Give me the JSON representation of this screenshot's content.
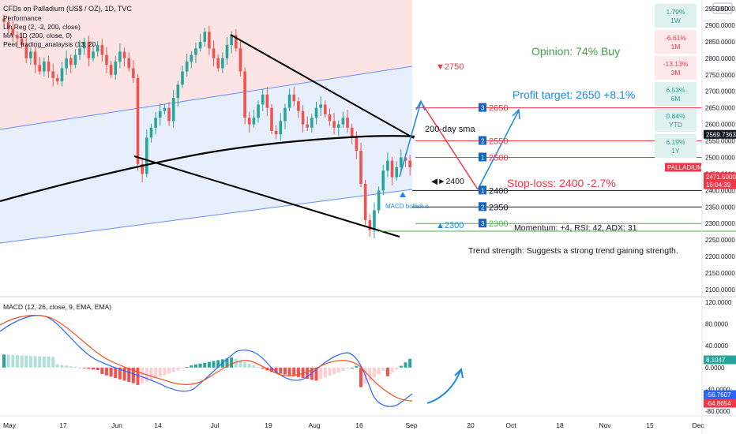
{
  "header": {
    "title": "CFDs on Palladium (US$ / OZ), 1D, TVC",
    "lines": [
      "Performance",
      "Lin Reg (2, -2, 200, close)",
      "MA - 1D (200, close, 0)",
      "Peet_trading_analaysis (13, 20"
    ]
  },
  "currency": "USD",
  "performance": [
    {
      "value": "1.79%",
      "period": "1W",
      "tone": "pos"
    },
    {
      "value": "-6.61%",
      "period": "1M",
      "tone": "neg"
    },
    {
      "value": "-13.13%",
      "period": "3M",
      "tone": "neg"
    },
    {
      "value": "6.53%",
      "period": "6M",
      "tone": "pos"
    },
    {
      "value": "0.84%",
      "period": "YTD",
      "tone": "pos"
    },
    {
      "value": "6.19%",
      "period": "1Y",
      "tone": "pos"
    }
  ],
  "annotations": {
    "opinion": "Opinion: 74% Buy",
    "profit_target": "Profit target: 2650 +8.1%",
    "stop_loss": "Stop-loss: 2400 -2.7%",
    "momentum": "Momentum: +4, RSI: 42, ADX: 31",
    "trend_strength": "Trend strength: Suggests a strong trend gaining strength.",
    "sma_label": "200-day sma",
    "macd_bullish": "MACD bullish x",
    "arrow_2750": "▼2750",
    "arrow_2300": "▲2300",
    "marker_2400": "◀►2400"
  },
  "levels": [
    {
      "num": "3",
      "value": 2650
    },
    {
      "num": "2",
      "value": 2550
    },
    {
      "num": "1",
      "value": 2500
    },
    {
      "num": "1",
      "value": 2400
    },
    {
      "num": "2",
      "value": 2350
    },
    {
      "num": "3",
      "value": 2300
    }
  ],
  "price_tags": [
    {
      "label": "2569.7363",
      "value": 2569.7363,
      "color": "#131722"
    },
    {
      "label": "PALLADIUM",
      "value": 2483,
      "color": "#f23645"
    },
    {
      "label": "2471.5000",
      "value": 2471.5,
      "color": "#f23645"
    },
    {
      "label": "16:04:39",
      "value": 2460,
      "color": "#f23645"
    }
  ],
  "macd": {
    "title": "MACD (12, 26, close, 9, EMA, EMA)",
    "ticks": [
      "120.0000",
      "80.0000",
      "40.0000",
      "0.0000",
      "-40.0000",
      "-80.0000"
    ],
    "tick_values": [
      120,
      80,
      40,
      0,
      -40,
      -80
    ],
    "tags": [
      {
        "label": "8.1047",
        "value": 8.1047,
        "color": "#26a69a"
      },
      {
        "label": "-56.7607",
        "value": -56.7607,
        "color": "#2962ff"
      },
      {
        "label": "-64.8654",
        "value": -64.8654,
        "color": "#f23645"
      }
    ]
  },
  "chart_data": {
    "type": "candlestick",
    "title": "CFDs on Palladium (US$ / OZ), 1D, TVC",
    "y_ticks": [
      2950,
      2900,
      2850,
      2800,
      2750,
      2700,
      2650,
      2600,
      2550,
      2500,
      2450,
      2400,
      2350,
      2300,
      2250,
      2200,
      2150,
      2100
    ],
    "ylim": [
      2080,
      2970
    ],
    "x_labels": [
      "May",
      "17",
      "Jun",
      "14",
      "Jul",
      "19",
      "Aug",
      "16",
      "Sep",
      "20",
      "Oct",
      "18",
      "Nov",
      "15",
      "Dec"
    ],
    "closes": [
      2910,
      2890,
      2870,
      2860,
      2840,
      2800,
      2820,
      2780,
      2760,
      2790,
      2760,
      2740,
      2730,
      2770,
      2800,
      2780,
      2810,
      2830,
      2850,
      2800,
      2820,
      2840,
      2810,
      2780,
      2750,
      2790,
      2820,
      2800,
      2770,
      2740,
      2480,
      2450,
      2560,
      2590,
      2620,
      2640,
      2650,
      2610,
      2680,
      2720,
      2760,
      2790,
      2810,
      2830,
      2850,
      2880,
      2830,
      2800,
      2770,
      2800,
      2840,
      2870,
      2830,
      2760,
      2620,
      2600,
      2620,
      2660,
      2690,
      2650,
      2580,
      2570,
      2610,
      2650,
      2690,
      2670,
      2640,
      2600,
      2590,
      2620,
      2650,
      2660,
      2630,
      2610,
      2590,
      2600,
      2620,
      2590,
      2560,
      2520,
      2420,
      2310,
      2280,
      2340,
      2400,
      2460,
      2490,
      2440,
      2470,
      2500,
      2490,
      2470
    ],
    "support_level": 2400,
    "stop_loss": 2400,
    "profit_target": 2650
  }
}
